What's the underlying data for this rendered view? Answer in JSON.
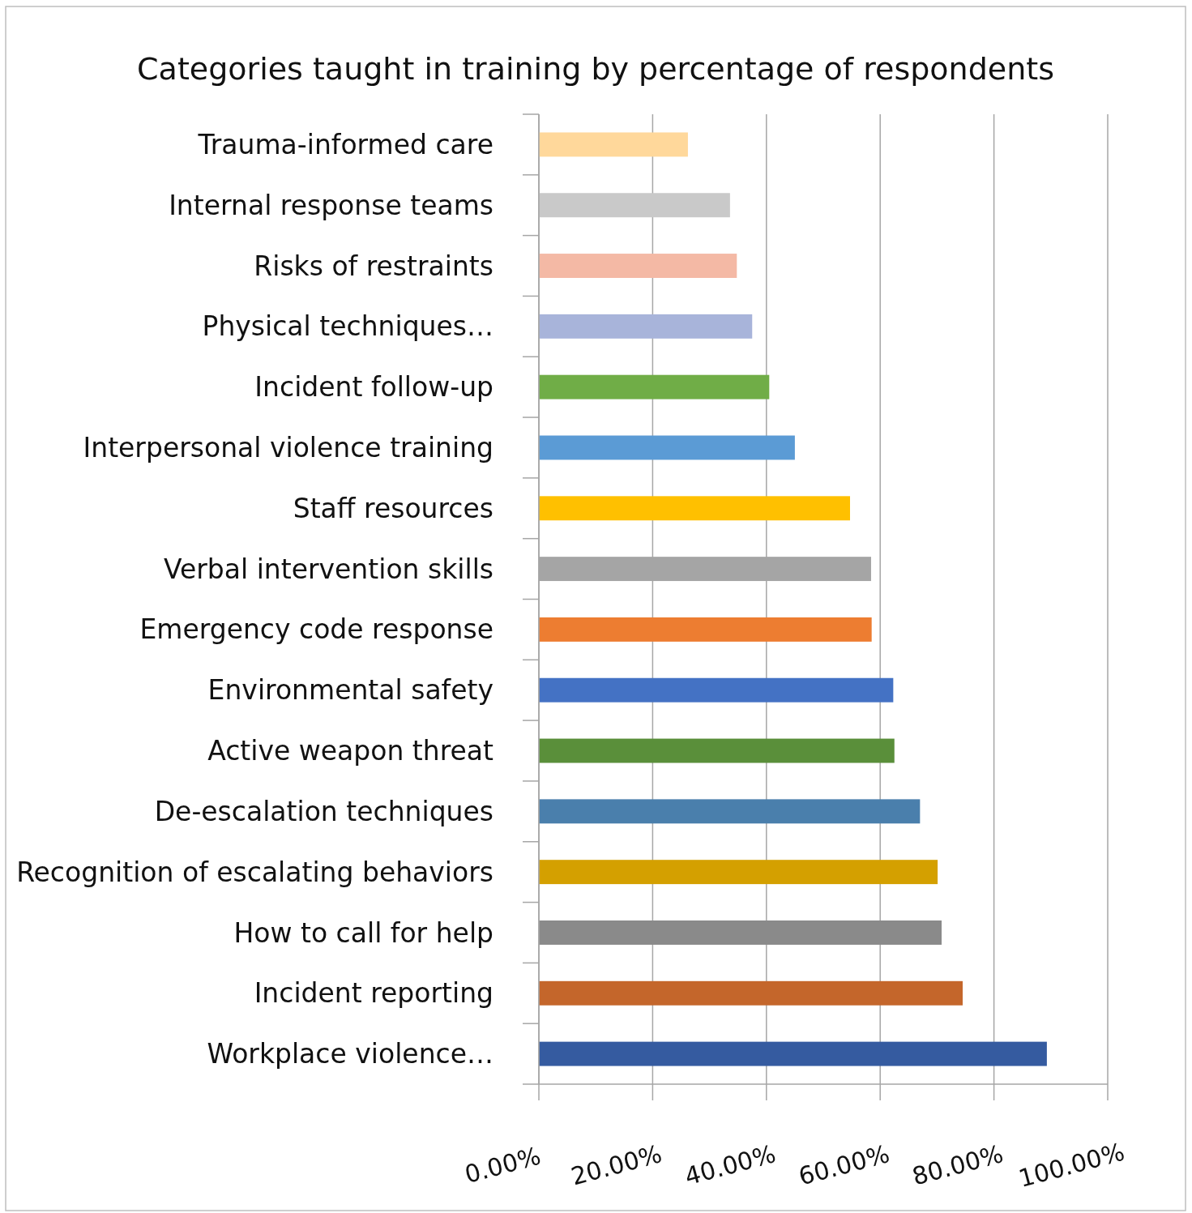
{
  "chart_data": {
    "type": "bar",
    "orientation": "horizontal",
    "title": "Categories taught in training by percentage of respondents",
    "categories": [
      "Trauma-informed care",
      "Internal response teams",
      "Risks of restraints",
      "Physical techniques…",
      "Incident follow-up",
      "Interpersonal violence training",
      "Staff resources",
      "Verbal intervention skills",
      "Emergency code response",
      "Environmental safety",
      "Active weapon threat",
      "De-escalation techniques",
      "Recognition of escalating behaviors",
      "How to call for help",
      "Incident reporting",
      "Workplace violence…"
    ],
    "values": [
      26.2,
      33.6,
      34.8,
      37.5,
      40.5,
      45.0,
      54.7,
      58.4,
      58.5,
      62.3,
      62.5,
      67.0,
      70.1,
      70.8,
      74.5,
      89.3
    ],
    "colors": [
      "#ffd89b",
      "#c9c9c9",
      "#f4b9a5",
      "#a8b4da",
      "#70ad47",
      "#5b9bd5",
      "#ffc000",
      "#a5a5a5",
      "#ed7d31",
      "#4472c4",
      "#5a8f3a",
      "#4a7fac",
      "#d4a000",
      "#8a8a8a",
      "#c4662b",
      "#355ba0"
    ],
    "xlim": [
      0,
      100
    ],
    "xticks": [
      {
        "value": 0,
        "label": "0.00%"
      },
      {
        "value": 20,
        "label": "20.00%"
      },
      {
        "value": 40,
        "label": "40.00%"
      },
      {
        "value": 60,
        "label": "60.00%"
      },
      {
        "value": 80,
        "label": "80.00%"
      },
      {
        "value": 100,
        "label": "100.00%"
      }
    ],
    "grid": "x"
  }
}
